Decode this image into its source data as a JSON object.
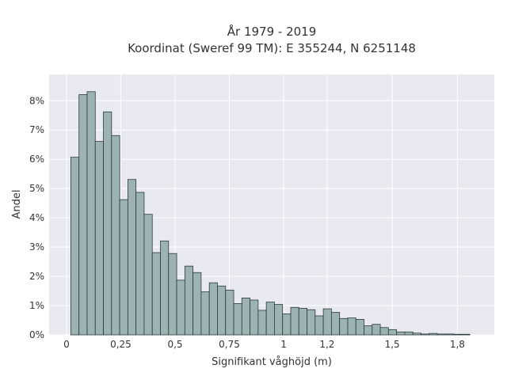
{
  "chart_data": {
    "type": "bar",
    "title_line1": "År 1979 - 2019",
    "title_line2": "Koordinat (Sweref 99 TM): E 355244, N 6251148",
    "xlabel": "Signifikant våghöjd (m)",
    "ylabel": "Andel",
    "xlim": [
      -0.08,
      1.97
    ],
    "ylim": [
      0,
      8.9
    ],
    "bin_width": 0.0375,
    "bin_start": 0.02,
    "x_ticks": [
      {
        "value": 0,
        "label": "0"
      },
      {
        "value": 0.25,
        "label": "0,25"
      },
      {
        "value": 0.5,
        "label": "0,5"
      },
      {
        "value": 0.75,
        "label": "0,75"
      },
      {
        "value": 1.0,
        "label": "1"
      },
      {
        "value": 1.2,
        "label": "1,2"
      },
      {
        "value": 1.5,
        "label": "1,5"
      },
      {
        "value": 1.8,
        "label": "1,8"
      }
    ],
    "y_ticks": [
      {
        "value": 0,
        "label": "0%"
      },
      {
        "value": 1,
        "label": "1%"
      },
      {
        "value": 2,
        "label": "2%"
      },
      {
        "value": 3,
        "label": "3%"
      },
      {
        "value": 4,
        "label": "4%"
      },
      {
        "value": 5,
        "label": "5%"
      },
      {
        "value": 6,
        "label": "6%"
      },
      {
        "value": 7,
        "label": "7%"
      },
      {
        "value": 8,
        "label": "8%"
      }
    ],
    "values": [
      6.07,
      8.21,
      8.31,
      6.61,
      7.62,
      6.81,
      4.62,
      5.31,
      4.87,
      4.12,
      2.81,
      3.21,
      2.78,
      1.87,
      2.35,
      2.13,
      1.47,
      1.78,
      1.67,
      1.53,
      1.07,
      1.26,
      1.19,
      0.84,
      1.12,
      1.04,
      0.72,
      0.94,
      0.91,
      0.86,
      0.65,
      0.89,
      0.77,
      0.56,
      0.58,
      0.53,
      0.31,
      0.36,
      0.25,
      0.18,
      0.1,
      0.1,
      0.06,
      0.03,
      0.05,
      0.03,
      0.03,
      0.02,
      0.02
    ],
    "colors": {
      "bar_fill": "#9db3b3",
      "bar_stroke": "#2b3a3a",
      "plot_bg": "#e9e9f2",
      "grid": "#ffffff"
    },
    "grid": true
  }
}
